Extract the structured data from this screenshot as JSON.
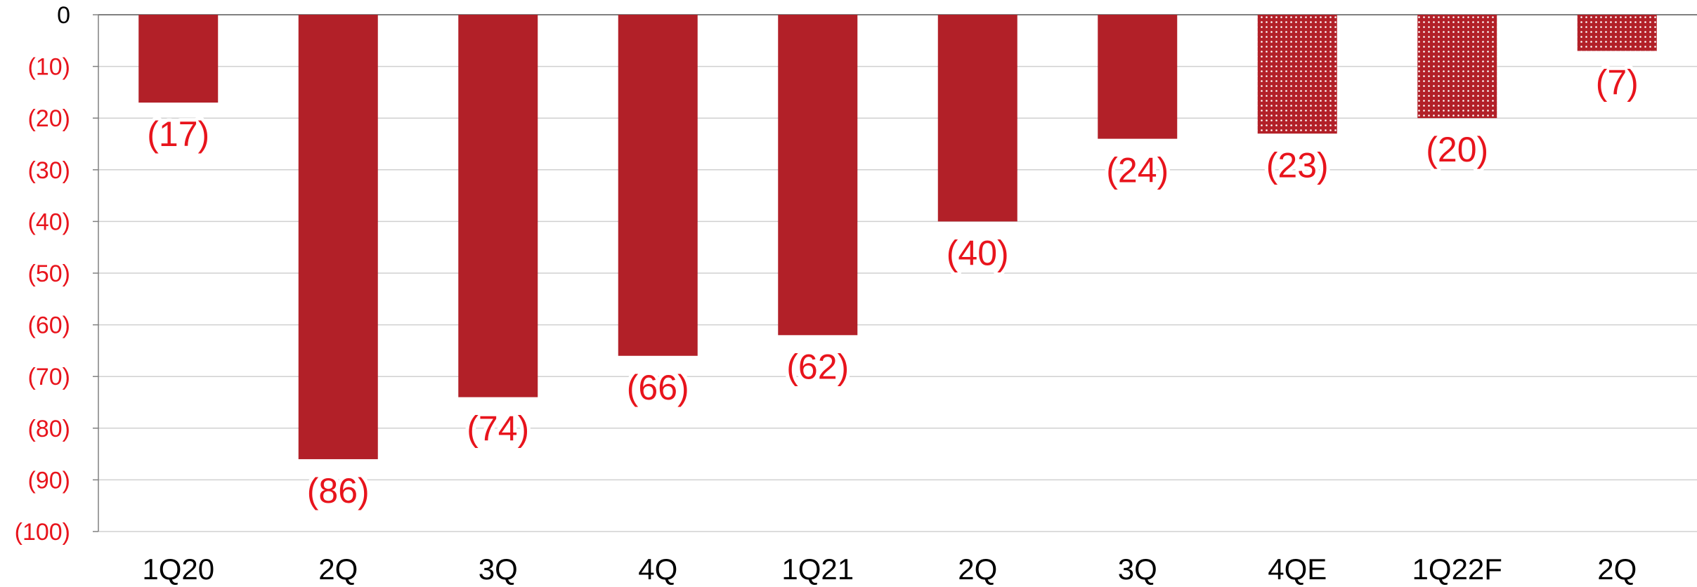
{
  "chart_data": {
    "type": "bar",
    "title": "",
    "xlabel": "",
    "ylabel": "",
    "categories": [
      "1Q20",
      "2Q",
      "3Q",
      "4Q",
      "1Q21",
      "2Q",
      "3Q",
      "4QE",
      "1Q22F",
      "2Q"
    ],
    "values": [
      -17,
      -86,
      -74,
      -66,
      -62,
      -40,
      -24,
      -23,
      -20,
      -7
    ],
    "value_labels": [
      "(17)",
      "(86)",
      "(74)",
      "(66)",
      "(62)",
      "(40)",
      "(24)",
      "(23)",
      "(20)",
      "(7)"
    ],
    "estimated": [
      false,
      false,
      false,
      false,
      false,
      false,
      false,
      true,
      true,
      true
    ],
    "ylim": [
      -100,
      0
    ],
    "yticks": [
      0,
      -10,
      -20,
      -30,
      -40,
      -50,
      -60,
      -70,
      -80,
      -90,
      -100
    ],
    "ytick_labels": [
      "0",
      "(10)",
      "(20)",
      "(30)",
      "(40)",
      "(50)",
      "(60)",
      "(70)",
      "(80)",
      "(90)",
      "(100)"
    ],
    "grid": true,
    "legend": "none",
    "colors": {
      "bar": "#b22028",
      "label": "#e8141c",
      "zero_tick": "#000000",
      "grid": "#d0d0d0",
      "axis": "#808080"
    }
  }
}
